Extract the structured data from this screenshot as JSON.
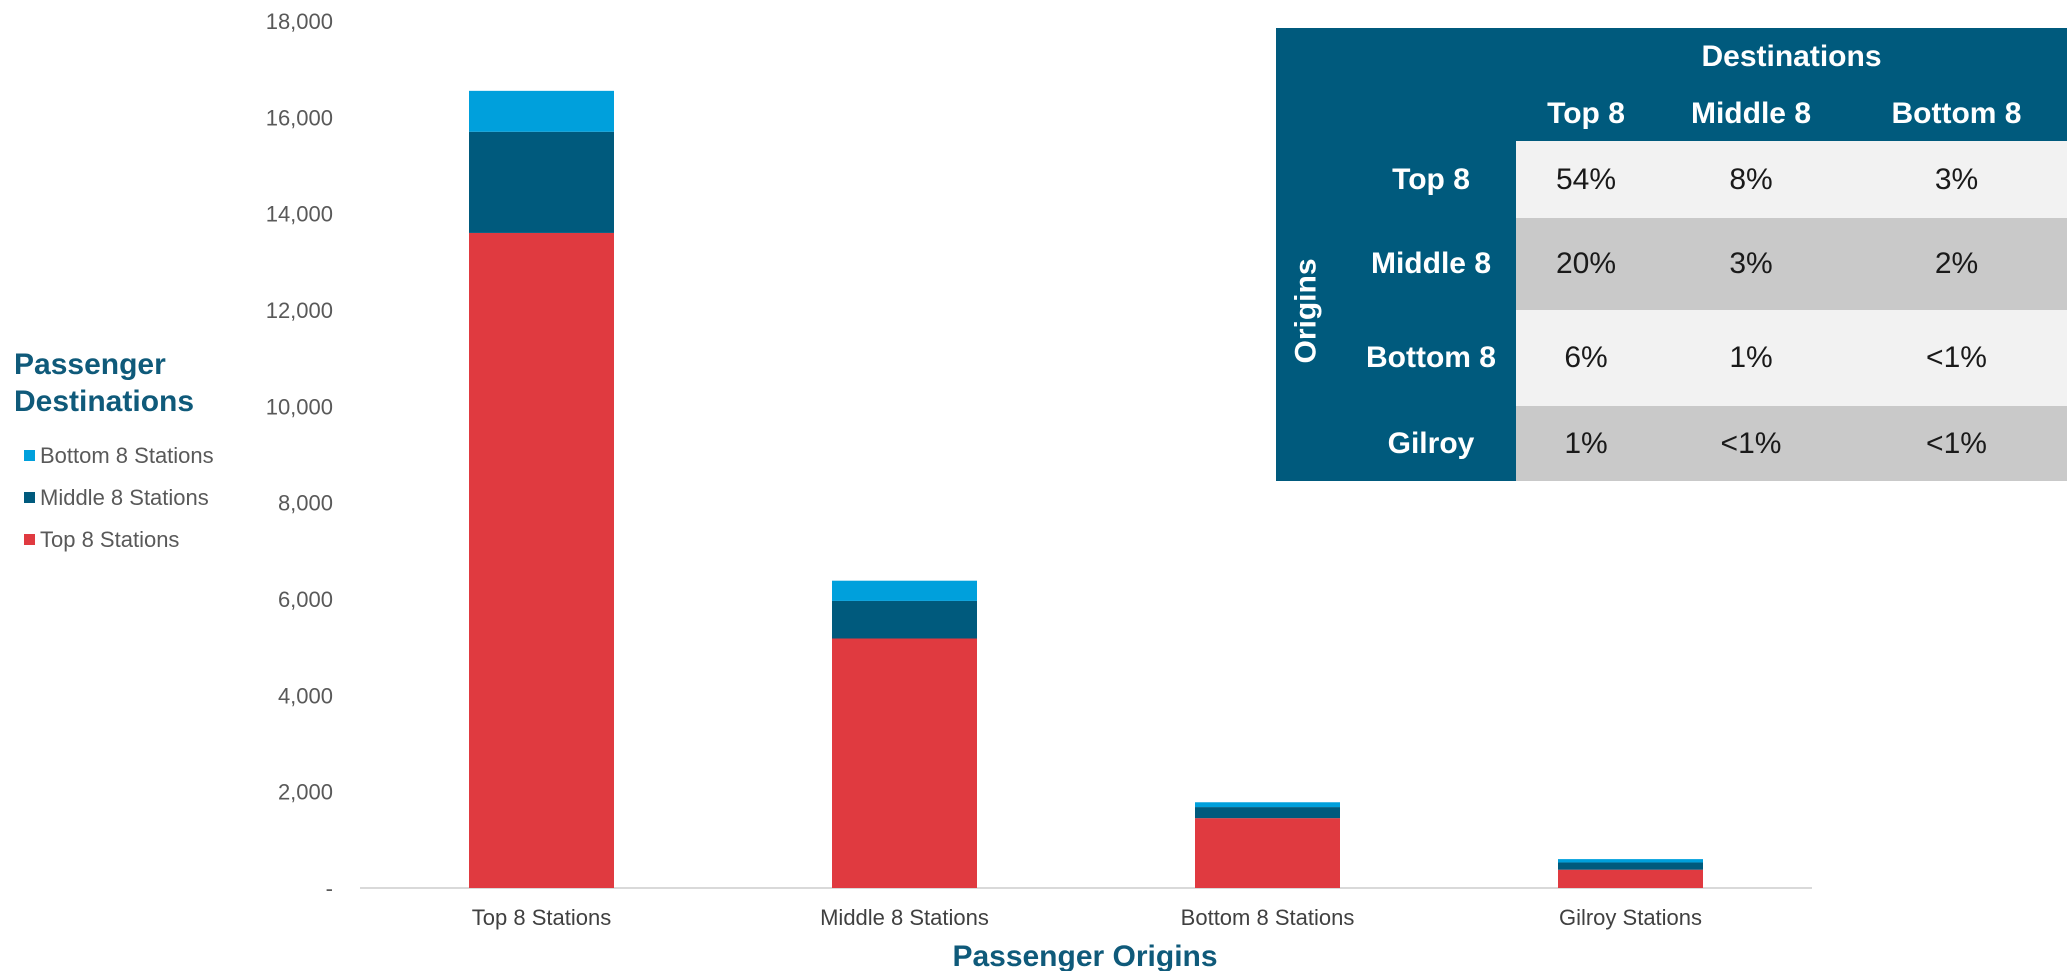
{
  "legend": {
    "title": "Passenger Destinations",
    "items": [
      {
        "label": "Bottom 8 Stations",
        "color": "#00a0dc"
      },
      {
        "label": "Middle 8 Stations",
        "color": "#005a7d"
      },
      {
        "label": "Top 8 Stations",
        "color": "#e03a40"
      }
    ]
  },
  "matrix": {
    "column_group_title": "Destinations",
    "row_group_title": "Origins",
    "columns": [
      "Top 8",
      "Middle 8",
      "Bottom 8"
    ],
    "rows": [
      {
        "label": "Top 8",
        "values": [
          "54%",
          "8%",
          "3%"
        ]
      },
      {
        "label": "Middle 8",
        "values": [
          "20%",
          "3%",
          "2%"
        ]
      },
      {
        "label": "Bottom 8",
        "values": [
          "6%",
          "1%",
          "<1%"
        ]
      },
      {
        "label": "Gilroy",
        "values": [
          "1%",
          "<1%",
          "<1%"
        ]
      }
    ],
    "header_color": "#005a7d",
    "row_colors": [
      "#f2f2f2",
      "#c9c9c9"
    ]
  },
  "chart_data": {
    "type": "bar",
    "stacked": true,
    "xlabel": "Passenger Origins",
    "ylabel": "",
    "ylim": [
      0,
      18000
    ],
    "yticks": [
      0,
      2000,
      4000,
      6000,
      8000,
      10000,
      12000,
      14000,
      16000,
      18000
    ],
    "ytick_labels": [
      "-",
      "2,000",
      "4,000",
      "6,000",
      "8,000",
      "10,000",
      "12,000",
      "14,000",
      "16,000",
      "18,000"
    ],
    "categories": [
      "Top 8 Stations",
      "Middle 8 Stations",
      "Bottom 8 Stations",
      "Gilroy Stations"
    ],
    "series": [
      {
        "name": "Top 8 Stations",
        "color": "#e03a40",
        "values": [
          13600,
          5180,
          1450,
          380
        ]
      },
      {
        "name": "Middle 8 Stations",
        "color": "#005a7d",
        "values": [
          2100,
          780,
          230,
          150
        ]
      },
      {
        "name": "Bottom 8 Stations",
        "color": "#00a0dc",
        "values": [
          850,
          420,
          100,
          70
        ]
      }
    ],
    "grid": false,
    "legend_position": "left"
  }
}
